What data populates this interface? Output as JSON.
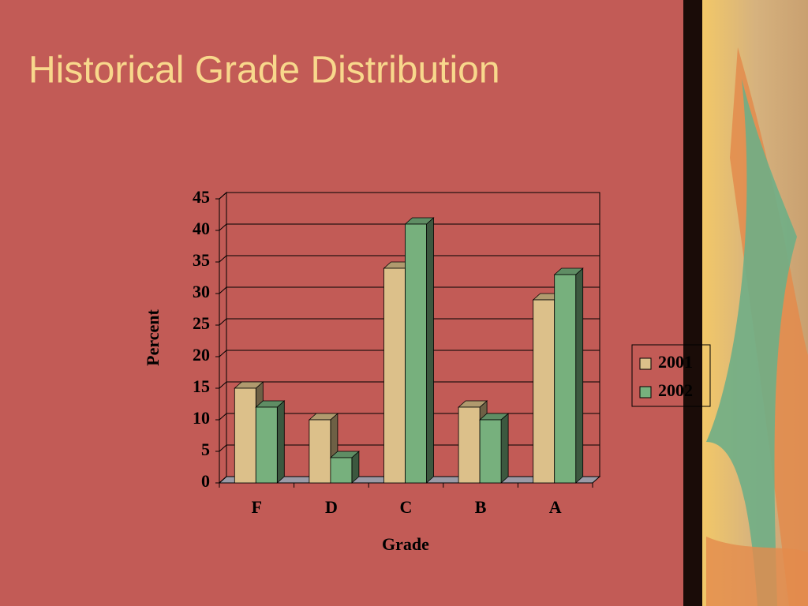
{
  "chart_data": {
    "type": "bar3d",
    "title": "Historical Grade Distribution",
    "x_label": "Grade",
    "y_label": "Percent",
    "categories": [
      "F",
      "D",
      "C",
      "B",
      "A"
    ],
    "series": [
      {
        "name": "2001",
        "color": "#dcc08a",
        "values": [
          15,
          10,
          34,
          12,
          29
        ]
      },
      {
        "name": "2002",
        "color": "#77b07d",
        "values": [
          12,
          4,
          41,
          10,
          33
        ]
      }
    ],
    "ylim": [
      0,
      45
    ],
    "yticks": [
      0,
      5,
      10,
      15,
      20,
      25,
      30,
      35,
      40,
      45
    ],
    "grid": true,
    "legend": "right"
  }
}
